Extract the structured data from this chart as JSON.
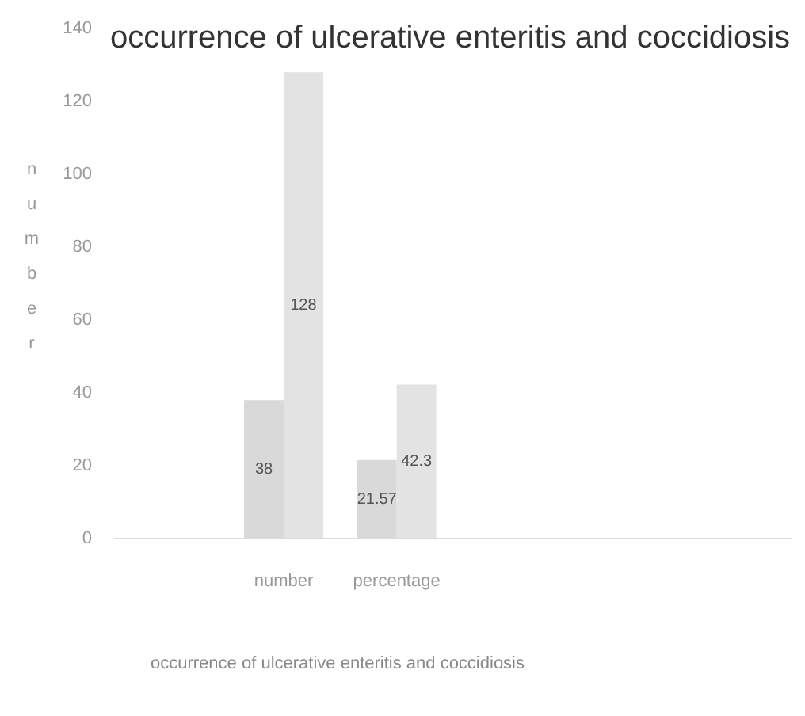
{
  "chart_data": {
    "type": "bar",
    "title": "occurrence of ulcerative enteritis and coccidiosis",
    "xlabel": "occurrence of ulcerative enteritis and coccidiosis",
    "ylabel": "number",
    "categories": [
      null,
      "number",
      "percentage",
      null,
      null,
      null
    ],
    "series": [
      {
        "color": "#d9d9d9",
        "values": [
          null,
          38,
          21.57,
          null,
          null,
          null
        ]
      },
      {
        "color": "#e3e3e3",
        "values": [
          null,
          128,
          42.3,
          null,
          null,
          null
        ]
      }
    ],
    "ylim": [
      0,
      140
    ],
    "yticks": [
      0,
      20,
      40,
      60,
      80,
      100,
      120,
      140
    ],
    "data_labels": true
  }
}
